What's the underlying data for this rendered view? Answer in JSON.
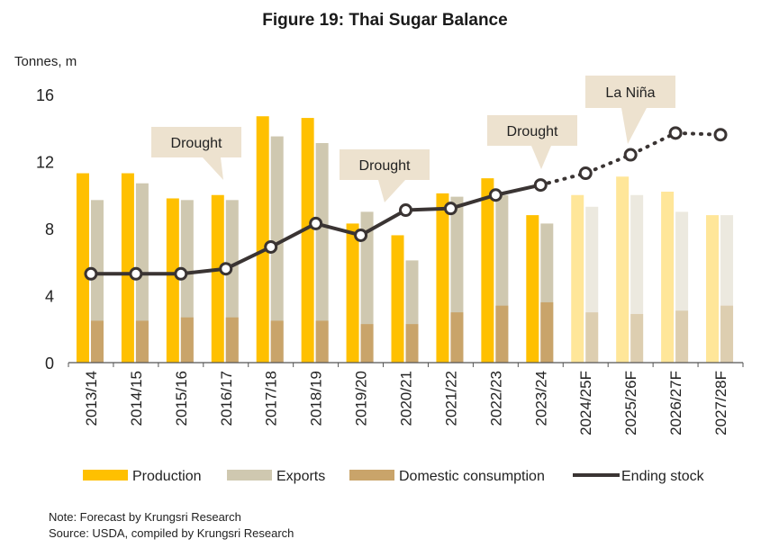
{
  "title": "Figure 19: Thai Sugar Balance",
  "note": "Note: Forecast by Krungsri Research",
  "source": "Source: USDA, compiled by Krungsri Research",
  "colors": {
    "production": "#FFC000",
    "exports": "#CFC8B0",
    "domestic": "#C9A46A",
    "stock": "#3A3433",
    "callout": "#EDE2CF",
    "axis": "#555555"
  },
  "chart_data": {
    "type": "bar",
    "title": "Figure 19: Thai Sugar Balance",
    "ylabel": "Tonnes, m",
    "xlabel": "",
    "ylim": [
      0,
      16
    ],
    "yticks": [
      0,
      4,
      8,
      12,
      16
    ],
    "grid": false,
    "categories": [
      "2013/14",
      "2014/15",
      "2015/16",
      "2016/17",
      "2017/18",
      "2018/19",
      "2019/20",
      "2020/21",
      "2021/22",
      "2022/23",
      "2023/24",
      "2024/25F",
      "2025/26F",
      "2026/27F",
      "2027/28F"
    ],
    "forecast_start_index": 11,
    "series": [
      {
        "name": "Production",
        "kind": "bar",
        "values": [
          11.3,
          11.3,
          9.8,
          10.0,
          14.7,
          14.6,
          8.3,
          7.6,
          10.1,
          11.0,
          8.8,
          10.0,
          11.1,
          10.2,
          8.8
        ]
      },
      {
        "name": "Exports",
        "kind": "bar",
        "values": [
          9.7,
          10.7,
          9.7,
          9.7,
          13.5,
          13.1,
          9.0,
          6.1,
          9.9,
          10.0,
          8.3,
          9.3,
          10.0,
          9.0,
          8.8
        ]
      },
      {
        "name": "Domestic consumption",
        "kind": "bar-overlay",
        "values": [
          2.5,
          2.5,
          2.7,
          2.7,
          2.5,
          2.5,
          2.3,
          2.3,
          3.0,
          3.4,
          3.6,
          3.0,
          2.9,
          3.1,
          3.4
        ]
      },
      {
        "name": "Ending stock",
        "kind": "line",
        "values": [
          5.3,
          5.3,
          5.3,
          5.6,
          6.9,
          8.3,
          7.6,
          9.1,
          9.2,
          10.0,
          10.6,
          11.3,
          12.4,
          13.7,
          13.6
        ]
      }
    ],
    "legend": [
      "Production",
      "Exports",
      "Domestic consumption",
      "Ending stock"
    ],
    "legend_position": "bottom",
    "annotations": [
      {
        "text": "Drought",
        "target_index": 3
      },
      {
        "text": "Drought",
        "target_index": 7
      },
      {
        "text": "Drought",
        "target_index": 10
      },
      {
        "text": "La Niña",
        "target_index": 12
      }
    ]
  }
}
